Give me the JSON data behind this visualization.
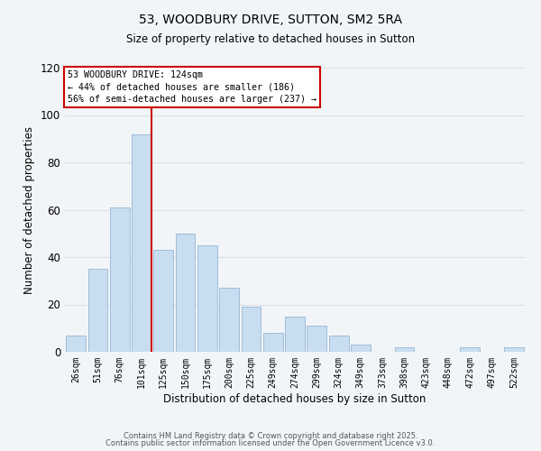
{
  "title": "53, WOODBURY DRIVE, SUTTON, SM2 5RA",
  "subtitle": "Size of property relative to detached houses in Sutton",
  "xlabel": "Distribution of detached houses by size in Sutton",
  "ylabel": "Number of detached properties",
  "bar_labels": [
    "26sqm",
    "51sqm",
    "76sqm",
    "101sqm",
    "125sqm",
    "150sqm",
    "175sqm",
    "200sqm",
    "225sqm",
    "249sqm",
    "274sqm",
    "299sqm",
    "324sqm",
    "349sqm",
    "373sqm",
    "398sqm",
    "423sqm",
    "448sqm",
    "472sqm",
    "497sqm",
    "522sqm"
  ],
  "bar_values": [
    7,
    35,
    61,
    92,
    43,
    50,
    45,
    27,
    19,
    8,
    15,
    11,
    7,
    3,
    0,
    2,
    0,
    0,
    2,
    0,
    2
  ],
  "bar_color": "#c8ddf0",
  "bar_edgecolor": "#a0bcd8",
  "bg_color": "#f2f5f8",
  "grid_color": "#d8dfe6",
  "vline_color": "#cc0000",
  "annotation_text": "53 WOODBURY DRIVE: 124sqm\n← 44% of detached houses are smaller (186)\n56% of semi-detached houses are larger (237) →",
  "annotation_box_color": "#ffffff",
  "annotation_box_edgecolor": "#cc0000",
  "ylim": [
    0,
    120
  ],
  "yticks": [
    0,
    20,
    40,
    60,
    80,
    100,
    120
  ],
  "footer_line1": "Contains HM Land Registry data © Crown copyright and database right 2025.",
  "footer_line2": "Contains public sector information licensed under the Open Government Licence v3.0."
}
